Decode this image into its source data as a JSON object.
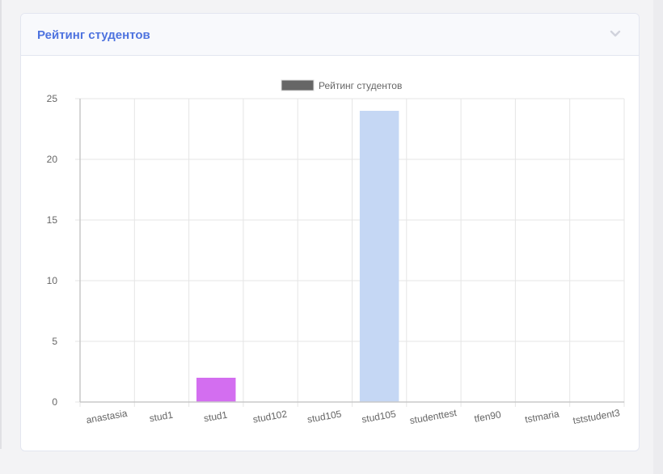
{
  "card": {
    "title": "Рейтинг студентов",
    "collapse_icon": "chevron-down-icon"
  },
  "colors": {
    "title": "#4e73df",
    "legend_swatch": "#666666",
    "grid": "#e5e5e5",
    "axis": "#c8c8c8"
  },
  "chart_data": {
    "type": "bar",
    "legend": "Рейтинг студентов",
    "categories": [
      "anastasia",
      "stud1",
      "stud1",
      "stud102",
      "stud105",
      "stud105",
      "studenttest",
      "tfen90",
      "tstmaria",
      "tststudent3"
    ],
    "values": [
      0,
      0,
      2,
      0,
      0,
      24,
      0,
      0,
      0,
      0
    ],
    "bar_colors": [
      "#cccccc",
      "#cccccc",
      "#d36ef0",
      "#cccccc",
      "#cccccc",
      "#c5d7f4",
      "#cccccc",
      "#cccccc",
      "#cccccc",
      "#cccccc"
    ],
    "ylim": [
      0,
      25
    ],
    "yticks": [
      0,
      5,
      10,
      15,
      20,
      25
    ],
    "grid": true,
    "legend_position": "top-center"
  }
}
